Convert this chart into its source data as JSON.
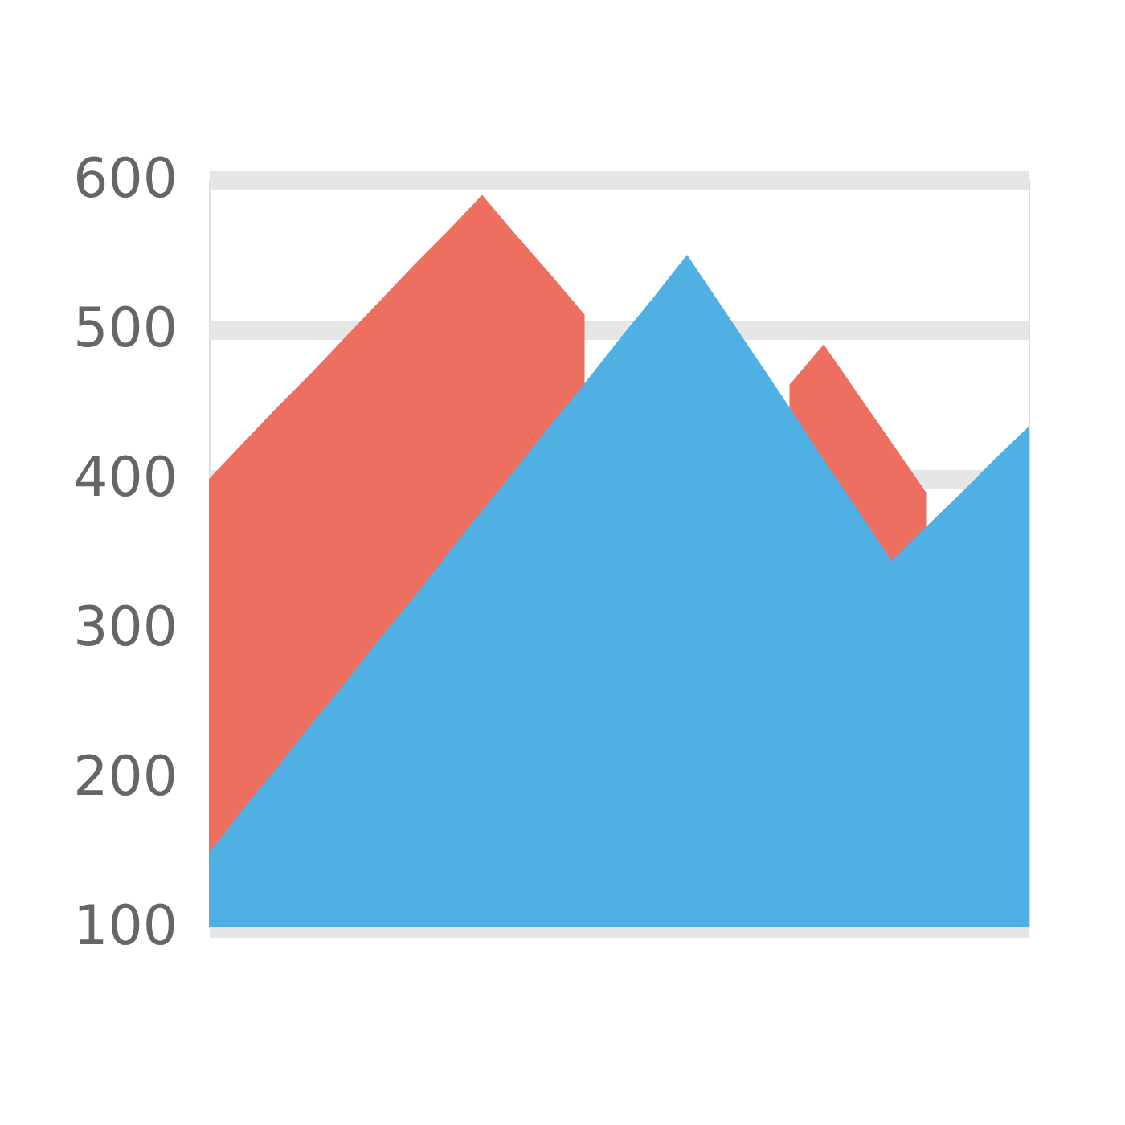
{
  "chart_data": {
    "type": "area",
    "categories": [
      null,
      null,
      null,
      null,
      null,
      null,
      null,
      null,
      null,
      null,
      null,
      null,
      null,
      null,
      null,
      null,
      null,
      null,
      null,
      null,
      null,
      null,
      null,
      null,
      null
    ],
    "series": [
      {
        "color": "#ec6f60",
        "values": [
          400,
          424,
          448,
          471,
          495,
          519,
          543,
          566,
          590,
          563,
          537,
          510,
          null,
          null,
          null,
          null,
          null,
          463,
          490,
          457,
          424,
          391,
          null,
          null,
          null
        ]
      },
      {
        "color": "#50b0e3",
        "values": [
          150,
          179,
          207,
          236,
          264,
          293,
          321,
          350,
          379,
          407,
          436,
          464,
          493,
          521,
          550,
          516,
          482,
          448,
          413,
          379,
          345,
          368,
          390,
          413,
          435
        ]
      }
    ],
    "ylim": [
      100,
      600
    ],
    "yticks": [
      100,
      200,
      300,
      400,
      500,
      600
    ],
    "grid": "y",
    "tick_labels": "y"
  }
}
